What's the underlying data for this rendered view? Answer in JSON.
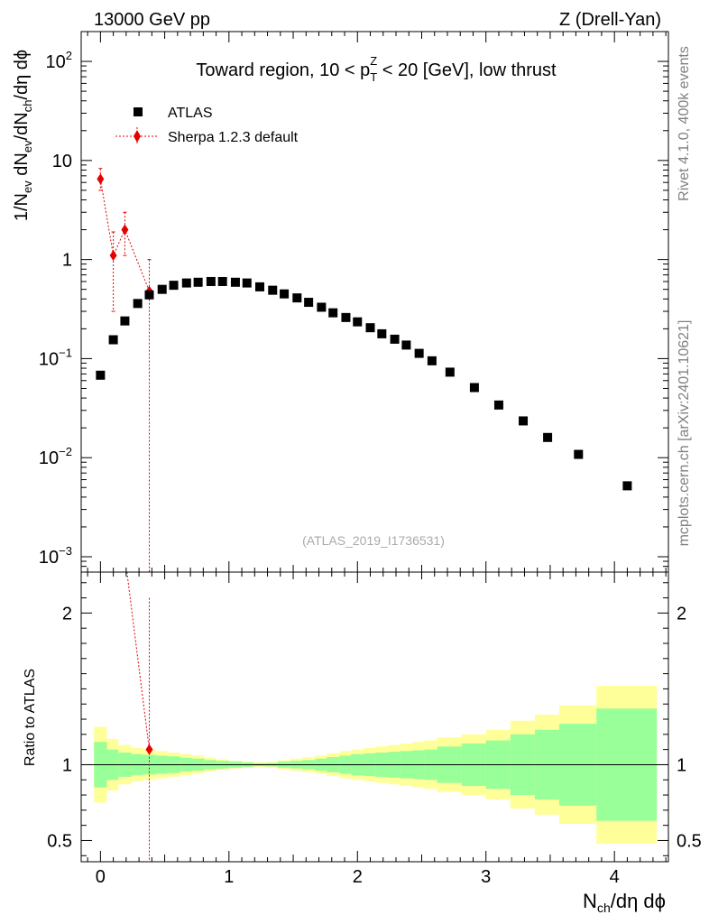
{
  "header": {
    "left": "13000 GeV pp",
    "right": "Z (Drell-Yan)"
  },
  "side_labels": {
    "rivet": "Rivet 4.1.0,  400k events",
    "mcplots": "mcplots.cern.ch [arXiv:2401.10621]"
  },
  "colors": {
    "atlas": "#000000",
    "sherpa": "#e60000",
    "band_inner": "#99ff99",
    "band_outer": "#ffff99"
  },
  "chart_data": {
    "type": "scatter",
    "title_parts": {
      "prefix": "Toward region, 10 < p",
      "sup": "Z",
      "sub": "T",
      "suffix": " < 20 [GeV], low thrust"
    },
    "analysis_id": "(ATLAS_2019_I1736531)",
    "xlabel": {
      "main": "N",
      "sub": "ch",
      "rest": "/dη dϕ"
    },
    "ylabel": {
      "a": "1/N",
      "a_sub": "ev",
      "b": " dN",
      "b_sub": "ev",
      "c": "/dN",
      "c_sub": "ch",
      "d": "/dη dϕ"
    },
    "ratio_ylabel": "Ratio to ATLAS",
    "xlim": [
      -0.15,
      4.42
    ],
    "ylim_log": [
      0.0007,
      200
    ],
    "ratio_ylim": [
      0.36,
      2.27
    ],
    "x_ticks": [
      0,
      1,
      2,
      3,
      4
    ],
    "y_ticks": [
      {
        "value": 0.001,
        "base": "10",
        "exp": "−3"
      },
      {
        "value": 0.01,
        "base": "10",
        "exp": "−2"
      },
      {
        "value": 0.1,
        "base": "10",
        "exp": "−1"
      },
      {
        "value": 1,
        "base": "1",
        "exp": ""
      },
      {
        "value": 10,
        "base": "10",
        "exp": ""
      },
      {
        "value": 100,
        "base": "10",
        "exp": "2"
      }
    ],
    "ratio_ticks": [
      {
        "value": 0.5,
        "label": "0.5"
      },
      {
        "value": 1,
        "label": "1"
      },
      {
        "value": 2,
        "label": "2"
      }
    ],
    "series": [
      {
        "name": "ATLAS",
        "marker": "square",
        "x": [
          0.0,
          0.1,
          0.19,
          0.29,
          0.38,
          0.48,
          0.57,
          0.67,
          0.76,
          0.86,
          0.95,
          1.05,
          1.14,
          1.24,
          1.34,
          1.43,
          1.53,
          1.62,
          1.72,
          1.81,
          1.91,
          2.0,
          2.1,
          2.19,
          2.29,
          2.38,
          2.48,
          2.58,
          2.72,
          2.91,
          3.1,
          3.29,
          3.48,
          3.72,
          4.1
        ],
        "y": [
          0.068,
          0.155,
          0.24,
          0.36,
          0.44,
          0.5,
          0.55,
          0.58,
          0.59,
          0.6,
          0.6,
          0.59,
          0.58,
          0.53,
          0.49,
          0.45,
          0.41,
          0.37,
          0.33,
          0.29,
          0.26,
          0.235,
          0.205,
          0.178,
          0.157,
          0.137,
          0.113,
          0.095,
          0.073,
          0.051,
          0.034,
          0.0235,
          0.016,
          0.0108,
          0.0052
        ]
      },
      {
        "name": "Sherpa 1.2.3 default",
        "marker": "diamond",
        "x": [
          0.0,
          0.1,
          0.19,
          0.38
        ],
        "y": [
          6.5,
          1.1,
          2.0,
          0.48
        ],
        "yerr_low": [
          5.0,
          0.3,
          1.1,
          0.0007
        ],
        "yerr_high": [
          8.3,
          1.9,
          3.0,
          1.0
        ]
      }
    ],
    "sherpa_ratio": [
      {
        "x": 0.38,
        "y": 1.1,
        "err_low": 0.36,
        "err_high": 2.1
      }
    ],
    "sherpa_ratio_offscale_from": {
      "x": 0.29,
      "y_low": 2.27
    },
    "ratio_bands": {
      "edges": [
        -0.05,
        0.05,
        0.14,
        0.24,
        0.33,
        0.43,
        0.52,
        0.62,
        0.71,
        0.81,
        0.9,
        1.0,
        1.1,
        1.19,
        1.29,
        1.38,
        1.48,
        1.57,
        1.67,
        1.76,
        1.86,
        1.95,
        2.05,
        2.14,
        2.24,
        2.33,
        2.43,
        2.52,
        2.62,
        2.81,
        3.0,
        3.19,
        3.38,
        3.57,
        3.86,
        4.33
      ],
      "inner": [
        0.15,
        0.1,
        0.08,
        0.07,
        0.065,
        0.06,
        0.055,
        0.045,
        0.04,
        0.03,
        0.025,
        0.02,
        0.015,
        0.01,
        0.012,
        0.02,
        0.025,
        0.03,
        0.04,
        0.05,
        0.06,
        0.07,
        0.075,
        0.08,
        0.085,
        0.09,
        0.095,
        0.1,
        0.12,
        0.14,
        0.16,
        0.2,
        0.23,
        0.27,
        0.37
      ],
      "outer": [
        0.25,
        0.17,
        0.13,
        0.11,
        0.1,
        0.09,
        0.08,
        0.07,
        0.06,
        0.045,
        0.035,
        0.025,
        0.02,
        0.015,
        0.018,
        0.03,
        0.04,
        0.05,
        0.06,
        0.075,
        0.09,
        0.1,
        0.11,
        0.12,
        0.13,
        0.14,
        0.15,
        0.16,
        0.18,
        0.2,
        0.23,
        0.29,
        0.33,
        0.39,
        0.52
      ]
    }
  }
}
